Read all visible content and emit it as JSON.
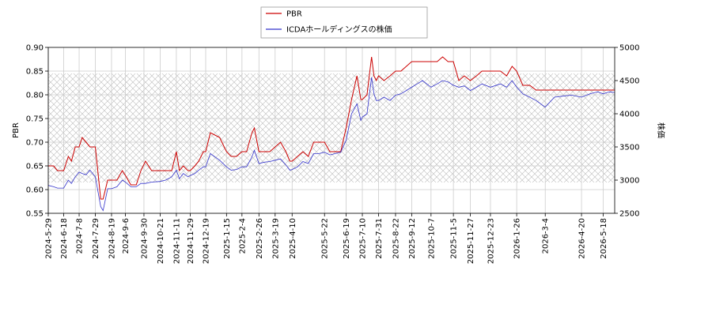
{
  "chart_data": {
    "type": "line",
    "legend": {
      "placement": "top-center"
    },
    "left_axis": {
      "label": "PBR",
      "ylim": [
        0.55,
        0.9
      ],
      "ticks": [
        "0.55",
        "0.60",
        "0.65",
        "0.70",
        "0.75",
        "0.80",
        "0.85",
        "0.90"
      ],
      "tick_values": [
        0.55,
        0.6,
        0.65,
        0.7,
        0.75,
        0.8,
        0.85,
        0.9
      ]
    },
    "right_axis": {
      "label": "株価",
      "ylim": [
        2500,
        5000
      ],
      "ticks": [
        "2500",
        "3000",
        "3500",
        "4000",
        "4500",
        "5000"
      ],
      "tick_values": [
        2500,
        3000,
        3500,
        4000,
        4500,
        5000
      ]
    },
    "x_axis": {
      "range": [
        "2024-05-29",
        "2026-06-02"
      ],
      "ticks": [
        "2024-5-29",
        "2024-6-18",
        "2024-7-8",
        "2024-7-29",
        "2024-8-19",
        "2024-9-6",
        "2024-9-30",
        "2024-10-21",
        "2024-11-11",
        "2024-11-29",
        "2024-12-19",
        "2025-1-15",
        "2025-2-4",
        "2025-2-26",
        "2025-3-19",
        "2025-4-10",
        "2025-5-22",
        "2025-6-19",
        "2025-7-10",
        "2025-7-31",
        "2025-8-22",
        "2025-9-12",
        "2025-10-7",
        "2025-11-5",
        "2025-11-27",
        "2025-12-23",
        "2026-1-26",
        "2026-3-4",
        "2026-4-20",
        "2026-5-18"
      ],
      "tick_dates": [
        "2024-05-29",
        "2024-06-18",
        "2024-07-08",
        "2024-07-29",
        "2024-08-19",
        "2024-09-06",
        "2024-09-30",
        "2024-10-21",
        "2024-11-11",
        "2024-11-29",
        "2024-12-19",
        "2025-01-15",
        "2025-02-04",
        "2025-02-26",
        "2025-03-19",
        "2025-04-10",
        "2025-05-22",
        "2025-06-19",
        "2025-07-10",
        "2025-07-31",
        "2025-08-22",
        "2025-09-12",
        "2025-10-07",
        "2025-11-05",
        "2025-11-27",
        "2025-12-23",
        "2026-01-26",
        "2026-03-04",
        "2026-04-20",
        "2026-05-18"
      ]
    },
    "hatched_band": {
      "pbr_range": [
        0.615,
        0.845
      ]
    },
    "grid": true,
    "series": [
      {
        "name": "PBR",
        "axis": "left",
        "color": "#cc0000",
        "x": [
          "2024-05-29",
          "2024-06-05",
          "2024-06-10",
          "2024-06-18",
          "2024-06-24",
          "2024-06-28",
          "2024-07-03",
          "2024-07-08",
          "2024-07-12",
          "2024-07-17",
          "2024-07-22",
          "2024-07-29",
          "2024-08-05",
          "2024-08-08",
          "2024-08-14",
          "2024-08-19",
          "2024-08-26",
          "2024-09-02",
          "2024-09-06",
          "2024-09-13",
          "2024-09-20",
          "2024-09-26",
          "2024-10-02",
          "2024-10-10",
          "2024-10-21",
          "2024-10-28",
          "2024-11-05",
          "2024-11-11",
          "2024-11-15",
          "2024-11-20",
          "2024-11-26",
          "2024-11-29",
          "2024-12-05",
          "2024-12-10",
          "2024-12-16",
          "2024-12-19",
          "2024-12-25",
          "2025-01-06",
          "2025-01-15",
          "2025-01-21",
          "2025-01-28",
          "2025-02-04",
          "2025-02-10",
          "2025-02-17",
          "2025-02-20",
          "2025-02-26",
          "2025-03-05",
          "2025-03-12",
          "2025-03-19",
          "2025-03-26",
          "2025-04-02",
          "2025-04-07",
          "2025-04-10",
          "2025-04-17",
          "2025-04-24",
          "2025-05-01",
          "2025-05-08",
          "2025-05-15",
          "2025-05-22",
          "2025-05-29",
          "2025-06-05",
          "2025-06-12",
          "2025-06-19",
          "2025-06-26",
          "2025-07-03",
          "2025-07-08",
          "2025-07-10",
          "2025-07-16",
          "2025-07-22",
          "2025-07-25",
          "2025-07-28",
          "2025-07-31",
          "2025-08-07",
          "2025-08-15",
          "2025-08-22",
          "2025-08-29",
          "2025-09-05",
          "2025-09-12",
          "2025-09-19",
          "2025-09-26",
          "2025-10-07",
          "2025-10-15",
          "2025-10-22",
          "2025-10-29",
          "2025-11-05",
          "2025-11-12",
          "2025-11-19",
          "2025-11-27",
          "2025-12-05",
          "2025-12-12",
          "2025-12-23",
          "2026-01-05",
          "2026-01-13",
          "2026-01-20",
          "2026-01-26",
          "2026-02-03",
          "2026-02-12",
          "2026-02-20",
          "2026-03-04",
          "2026-03-16",
          "2026-03-30",
          "2026-04-07",
          "2026-04-20",
          "2026-05-01",
          "2026-05-11",
          "2026-05-18",
          "2026-05-26",
          "2026-06-02"
        ],
        "values": [
          0.65,
          0.65,
          0.64,
          0.64,
          0.67,
          0.66,
          0.69,
          0.69,
          0.71,
          0.7,
          0.69,
          0.69,
          0.58,
          0.58,
          0.62,
          0.62,
          0.62,
          0.64,
          0.63,
          0.61,
          0.61,
          0.64,
          0.66,
          0.64,
          0.64,
          0.64,
          0.64,
          0.68,
          0.64,
          0.65,
          0.64,
          0.64,
          0.65,
          0.66,
          0.68,
          0.68,
          0.72,
          0.71,
          0.68,
          0.67,
          0.67,
          0.68,
          0.68,
          0.72,
          0.73,
          0.68,
          0.68,
          0.68,
          0.69,
          0.7,
          0.68,
          0.66,
          0.66,
          0.67,
          0.68,
          0.67,
          0.7,
          0.7,
          0.7,
          0.68,
          0.68,
          0.68,
          0.73,
          0.79,
          0.84,
          0.79,
          0.79,
          0.8,
          0.88,
          0.84,
          0.83,
          0.84,
          0.83,
          0.84,
          0.85,
          0.85,
          0.86,
          0.87,
          0.87,
          0.87,
          0.87,
          0.87,
          0.88,
          0.87,
          0.87,
          0.83,
          0.84,
          0.83,
          0.84,
          0.85,
          0.85,
          0.85,
          0.84,
          0.86,
          0.85,
          0.82,
          0.82,
          0.81,
          0.81,
          0.81,
          0.81,
          0.81,
          0.81,
          0.81,
          0.81,
          0.81,
          0.81,
          0.81
        ]
      },
      {
        "name": "ICDAホールディングスの株価",
        "axis": "right",
        "color": "#3333cc",
        "x": [
          "2024-05-29",
          "2024-06-05",
          "2024-06-10",
          "2024-06-18",
          "2024-06-24",
          "2024-06-28",
          "2024-07-03",
          "2024-07-08",
          "2024-07-12",
          "2024-07-17",
          "2024-07-22",
          "2024-07-29",
          "2024-08-05",
          "2024-08-08",
          "2024-08-14",
          "2024-08-19",
          "2024-08-26",
          "2024-09-02",
          "2024-09-06",
          "2024-09-13",
          "2024-09-20",
          "2024-09-26",
          "2024-10-02",
          "2024-10-10",
          "2024-10-21",
          "2024-10-28",
          "2024-11-05",
          "2024-11-11",
          "2024-11-15",
          "2024-11-20",
          "2024-11-26",
          "2024-11-29",
          "2024-12-05",
          "2024-12-10",
          "2024-12-16",
          "2024-12-19",
          "2024-12-25",
          "2025-01-06",
          "2025-01-15",
          "2025-01-21",
          "2025-01-28",
          "2025-02-04",
          "2025-02-10",
          "2025-02-17",
          "2025-02-20",
          "2025-02-26",
          "2025-03-05",
          "2025-03-12",
          "2025-03-19",
          "2025-03-26",
          "2025-04-02",
          "2025-04-07",
          "2025-04-10",
          "2025-04-17",
          "2025-04-24",
          "2025-05-01",
          "2025-05-08",
          "2025-05-15",
          "2025-05-22",
          "2025-05-29",
          "2025-06-05",
          "2025-06-12",
          "2025-06-19",
          "2025-06-26",
          "2025-07-03",
          "2025-07-08",
          "2025-07-10",
          "2025-07-16",
          "2025-07-22",
          "2025-07-25",
          "2025-07-28",
          "2025-07-31",
          "2025-08-07",
          "2025-08-15",
          "2025-08-22",
          "2025-08-29",
          "2025-09-05",
          "2025-09-12",
          "2025-09-19",
          "2025-09-26",
          "2025-10-07",
          "2025-10-15",
          "2025-10-22",
          "2025-10-29",
          "2025-11-05",
          "2025-11-12",
          "2025-11-19",
          "2025-11-27",
          "2025-12-05",
          "2025-12-12",
          "2025-12-23",
          "2026-01-05",
          "2026-01-13",
          "2026-01-20",
          "2026-01-26",
          "2026-02-03",
          "2026-02-12",
          "2026-02-20",
          "2026-03-04",
          "2026-03-16",
          "2026-03-30",
          "2026-04-07",
          "2026-04-20",
          "2026-05-01",
          "2026-05-11",
          "2026-05-18",
          "2026-05-26",
          "2026-06-02"
        ],
        "values": [
          2920,
          2900,
          2880,
          2880,
          3000,
          2950,
          3050,
          3120,
          3100,
          3080,
          3150,
          3050,
          2600,
          2540,
          2870,
          2870,
          2900,
          3000,
          2970,
          2900,
          2900,
          2950,
          2950,
          2970,
          2980,
          3000,
          3050,
          3150,
          3020,
          3100,
          3050,
          3070,
          3100,
          3150,
          3200,
          3200,
          3400,
          3300,
          3200,
          3150,
          3160,
          3200,
          3200,
          3350,
          3450,
          3250,
          3270,
          3280,
          3300,
          3320,
          3230,
          3150,
          3160,
          3200,
          3280,
          3250,
          3400,
          3400,
          3420,
          3380,
          3400,
          3420,
          3600,
          4000,
          4150,
          3900,
          3950,
          4000,
          4550,
          4300,
          4200,
          4200,
          4250,
          4200,
          4280,
          4300,
          4350,
          4400,
          4450,
          4500,
          4400,
          4450,
          4500,
          4480,
          4430,
          4400,
          4420,
          4350,
          4400,
          4450,
          4400,
          4450,
          4400,
          4500,
          4400,
          4300,
          4250,
          4200,
          4100,
          4250,
          4270,
          4280,
          4250,
          4300,
          4330,
          4300,
          4330,
          4320
        ]
      }
    ]
  }
}
